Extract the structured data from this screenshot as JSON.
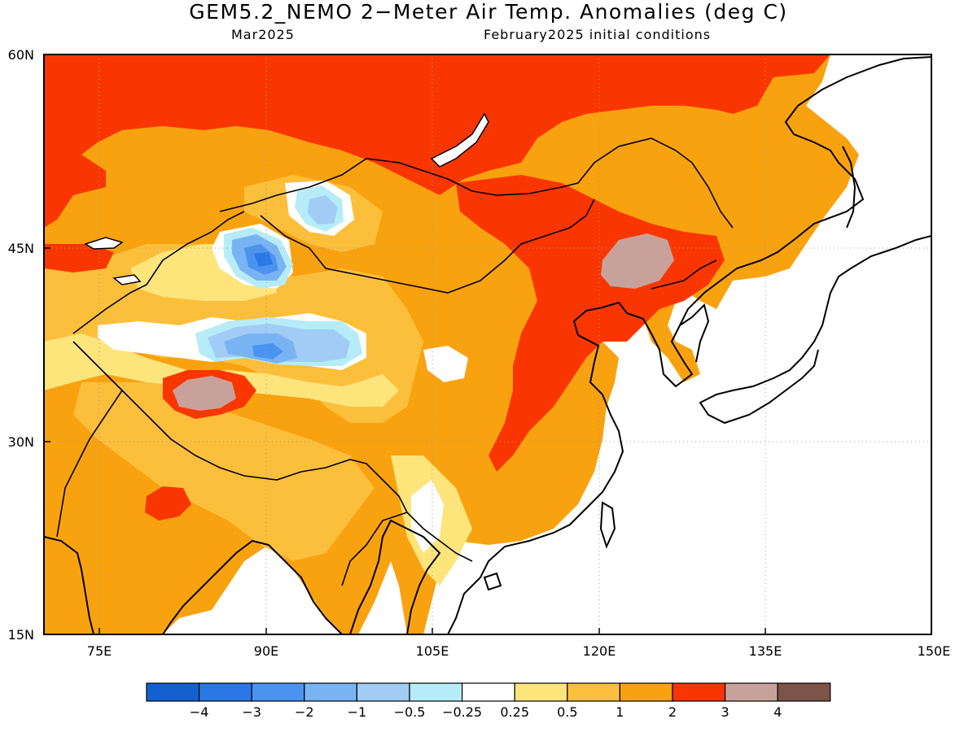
{
  "title": "GEM5.2_NEMO 2−Meter Air Temp. Anomalies (deg C)",
  "subtitle_left": "Mar2025",
  "subtitle_right": "February2025 initial conditions",
  "map": {
    "region": "East Asia",
    "lon_range": [
      70,
      150
    ],
    "lat_range": [
      15,
      60
    ],
    "lon_ticks": [
      "75E",
      "90E",
      "105E",
      "120E",
      "135E",
      "150E"
    ],
    "lat_ticks": [
      "15N",
      "30N",
      "45N",
      "60N"
    ],
    "gridlines": "dotted",
    "land_only_shading": true,
    "features": [
      {
        "name": "warm-anomaly-siberia",
        "category": "2 to 3"
      },
      {
        "name": "warm-anomaly-northeast-china",
        "category": "2 to 3"
      },
      {
        "name": "max-anomaly-inner-mongolia",
        "category": "3 to 4"
      },
      {
        "name": "max-anomaly-western-tibet",
        "category": "3 to 4"
      },
      {
        "name": "cool-anomaly-mongolia",
        "category": "-2 to -1"
      },
      {
        "name": "cool-anomaly-tarim-qaidam",
        "category": "-2 to -1"
      }
    ]
  },
  "colorbar": {
    "colors": [
      "#1560d0",
      "#2a78e8",
      "#4a94f0",
      "#78b4f4",
      "#a0ccf6",
      "#b6ecf8",
      "#ffffff",
      "#fde57c",
      "#fcbf3c",
      "#f9a20f",
      "#fa3600",
      "#c8a29a",
      "#7c5448"
    ],
    "labels": [
      "−4",
      "−3",
      "−2",
      "−1",
      "−0.5",
      "−0.25",
      "0.25",
      "0.5",
      "1",
      "2",
      "3",
      "4"
    ]
  }
}
